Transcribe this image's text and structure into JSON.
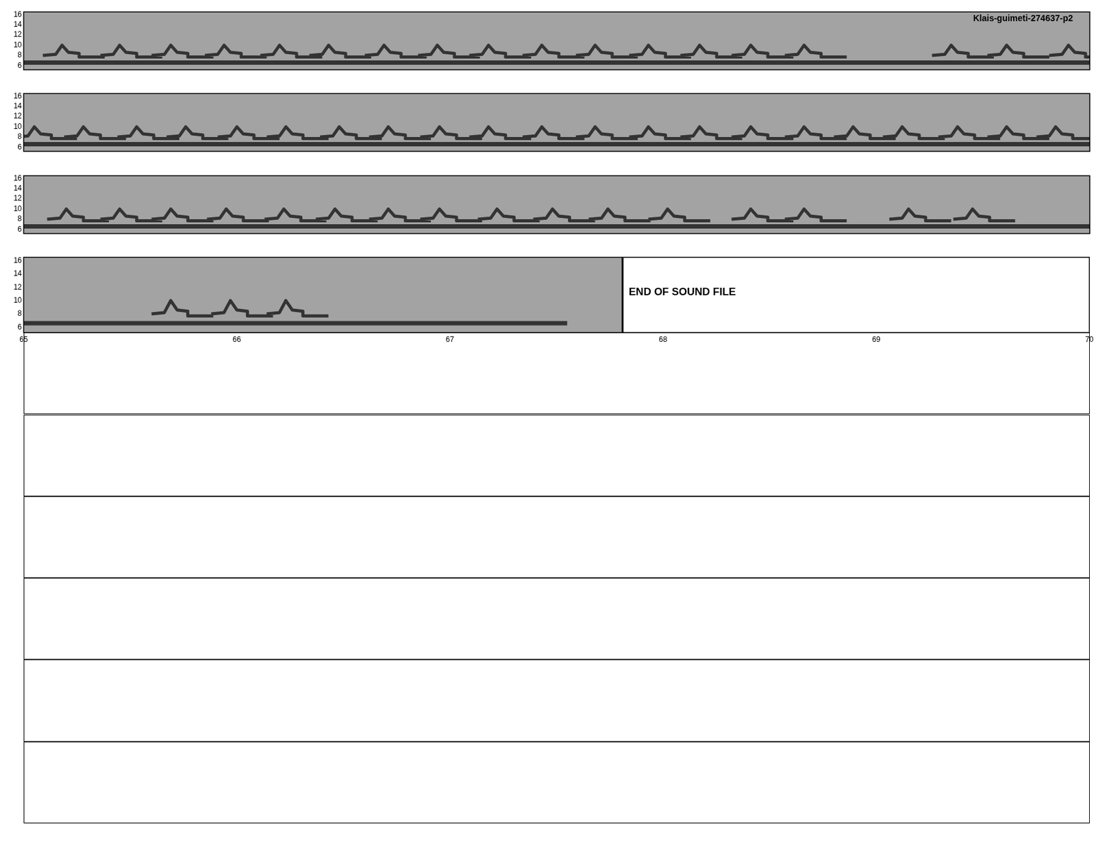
{
  "title": "Klais-guimeti-274637-p2",
  "call_shape": {
    "dt": [
      -0.09,
      -0.03,
      0,
      0.03,
      0.08,
      0.08,
      0.2
    ],
    "freq": [
      8.0,
      8.2,
      10.0,
      8.6,
      8.4,
      7.7,
      7.7
    ]
  },
  "chart_data": [
    {
      "type": "line",
      "xlim": [
        50,
        55
      ],
      "ylim": [
        5.2,
        16.5
      ],
      "yticks": [
        6,
        8,
        10,
        12,
        14,
        16
      ],
      "tick_labels": "y",
      "grid": false,
      "color": "#333333",
      "noise_band": {
        "freq": 6.6,
        "x": [
          50,
          55
        ]
      },
      "calls": [
        50.18,
        50.45,
        50.69,
        50.94,
        51.2,
        51.43,
        51.69,
        51.94,
        52.18,
        52.43,
        52.68,
        52.93,
        53.17,
        53.41,
        53.66,
        54.35,
        54.61,
        54.9
      ]
    },
    {
      "type": "line",
      "xlim": [
        55,
        60
      ],
      "ylim": [
        5.2,
        16.5
      ],
      "yticks": [
        6,
        8,
        10,
        12,
        14,
        16
      ],
      "tick_labels": "y",
      "grid": false,
      "color": "#333333",
      "noise_band": {
        "freq": 6.6,
        "x": [
          55,
          60
        ]
      },
      "calls": [
        55.05,
        55.28,
        55.53,
        55.76,
        56.0,
        56.23,
        56.48,
        56.71,
        56.95,
        57.18,
        57.43,
        57.68,
        57.93,
        58.17,
        58.41,
        58.66,
        58.89,
        59.12,
        59.38,
        59.61,
        59.84
      ]
    },
    {
      "type": "line",
      "xlim": [
        60,
        65
      ],
      "ylim": [
        5.2,
        16.5
      ],
      "yticks": [
        6,
        8,
        10,
        12,
        14,
        16
      ],
      "tick_labels": "y",
      "grid": false,
      "color": "#333333",
      "noise_band": {
        "freq": 6.6,
        "x": [
          60,
          65
        ]
      },
      "calls": [
        60.2,
        60.45,
        60.69,
        60.95,
        61.22,
        61.46,
        61.71,
        61.95,
        62.22,
        62.48,
        62.74,
        63.02,
        63.41,
        63.66,
        64.15,
        64.45
      ]
    },
    {
      "type": "line",
      "xlim": [
        65,
        70
      ],
      "ylim": [
        5.2,
        16.5
      ],
      "yticks": [
        6,
        8,
        10,
        12,
        14,
        16
      ],
      "xticks": [
        65,
        66,
        67,
        68,
        69,
        70
      ],
      "grid": false,
      "color": "#333333",
      "noise_band": {
        "freq": 6.6,
        "x": [
          65,
          67.55
        ]
      },
      "calls": [
        65.69,
        65.97,
        66.23
      ],
      "end_time": 67.81,
      "annotation": "END OF SOUND FILE"
    }
  ]
}
